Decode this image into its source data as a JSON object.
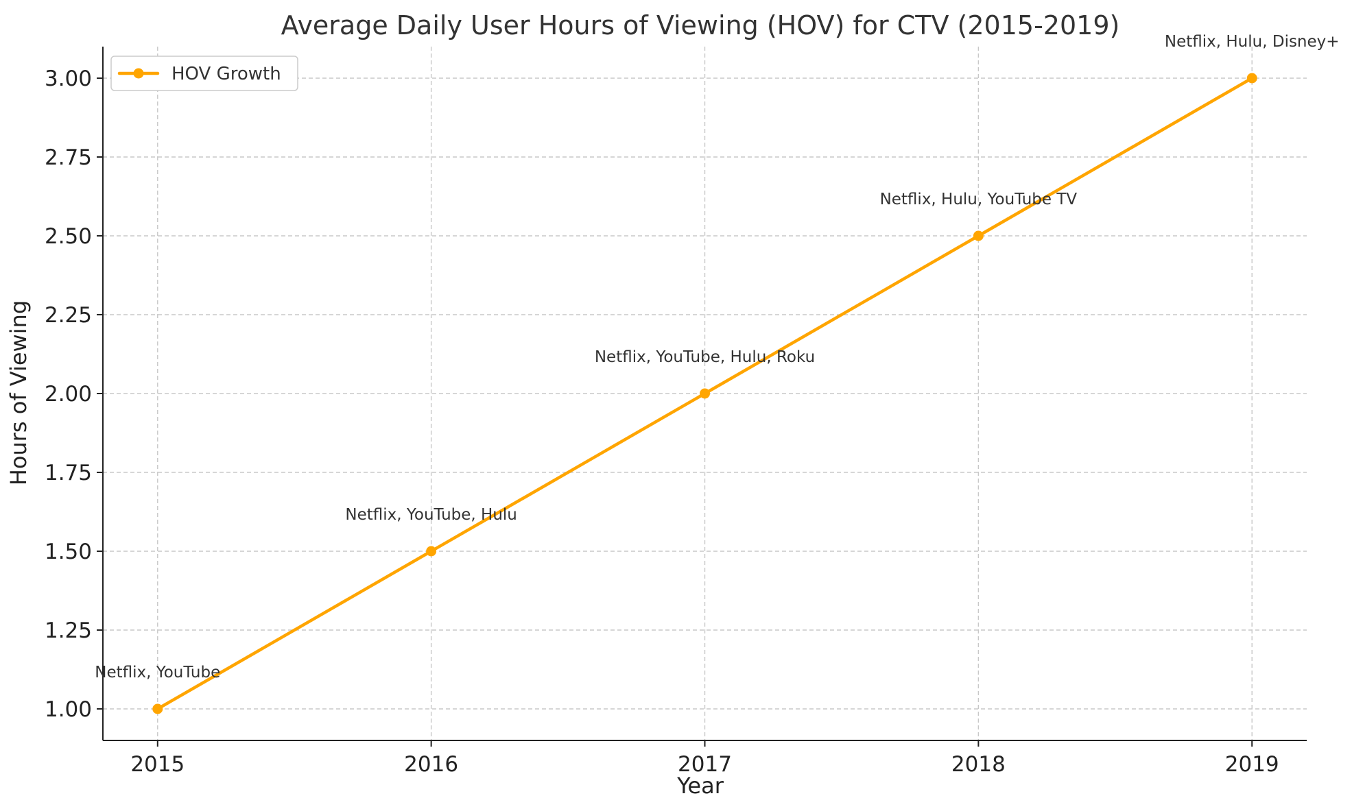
{
  "chart_data": {
    "type": "line",
    "title": "Average Daily User Hours of Viewing (HOV) for CTV (2015-2019)",
    "xlabel": "Year",
    "ylabel": "Hours of Viewing",
    "x": [
      2015,
      2016,
      2017,
      2018,
      2019
    ],
    "x_tick_labels": [
      "2015",
      "2016",
      "2017",
      "2018",
      "2019"
    ],
    "xlim": [
      2014.8,
      2019.2
    ],
    "ylim": [
      0.9,
      3.1
    ],
    "y_ticks": [
      1.0,
      1.25,
      1.5,
      1.75,
      2.0,
      2.25,
      2.5,
      2.75,
      3.0
    ],
    "y_tick_labels": [
      "1.00",
      "1.25",
      "1.50",
      "1.75",
      "2.00",
      "2.25",
      "2.50",
      "2.75",
      "3.00"
    ],
    "series": [
      {
        "name": "HOV Growth",
        "color": "#FFA500",
        "values": [
          1.0,
          1.5,
          2.0,
          2.5,
          3.0
        ]
      }
    ],
    "annotations": [
      {
        "x": 2015,
        "y": 1.1,
        "text": "Netflix, YouTube"
      },
      {
        "x": 2016,
        "y": 1.6,
        "text": "Netflix, YouTube, Hulu"
      },
      {
        "x": 2017,
        "y": 2.1,
        "text": "Netflix, YouTube, Hulu, Roku"
      },
      {
        "x": 2018,
        "y": 2.6,
        "text": "Netflix, Hulu, YouTube TV"
      },
      {
        "x": 2019,
        "y": 3.1,
        "text": "Netflix, Hulu, Disney+"
      }
    ],
    "legend": {
      "position": "upper-left",
      "label": "HOV Growth"
    },
    "grid": true
  }
}
